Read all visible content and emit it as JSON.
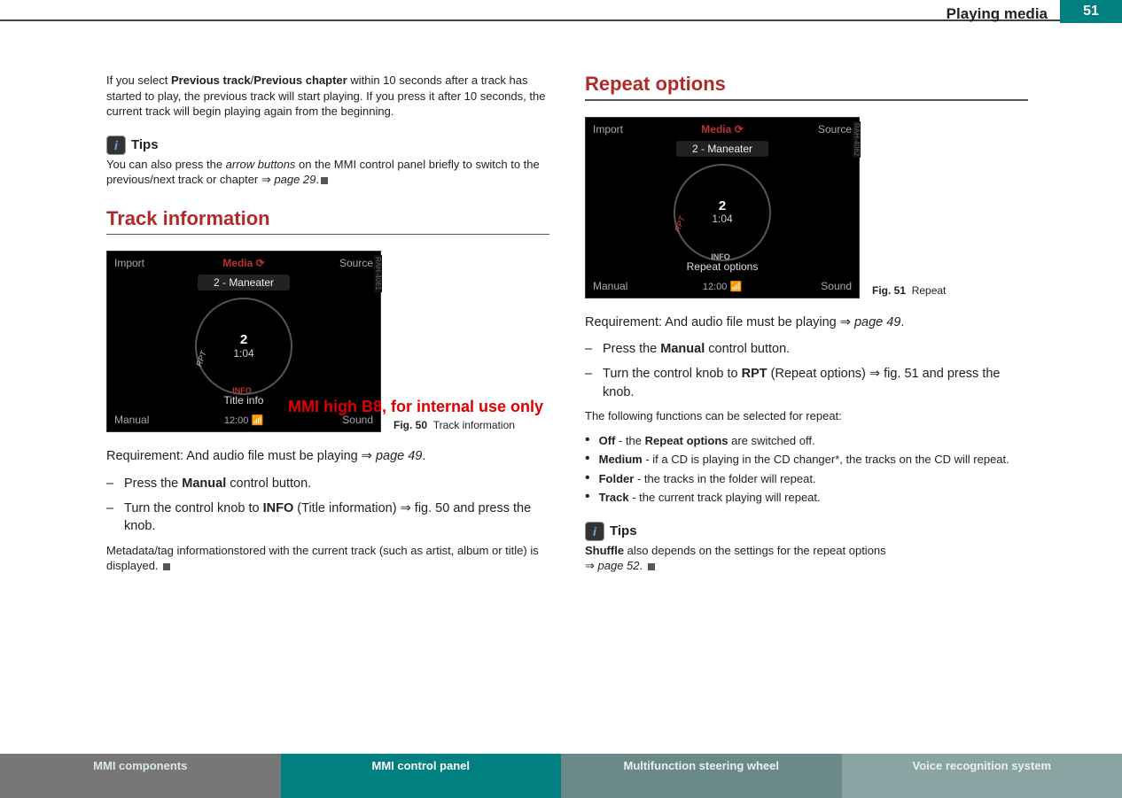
{
  "header": {
    "title": "Playing media",
    "page_number": "51"
  },
  "watermark": "MMI high B8, for internal use only",
  "col_left": {
    "intro": {
      "pre": "If you select ",
      "bold1": "Previous track",
      "slash": "/",
      "bold2": "Previous chapter",
      "post": " within 10 seconds after a track has started to play, the previous track will start playing. If you press it after 10 seconds, the current track will begin playing again from the beginning."
    },
    "tips_label": "Tips",
    "tips_body": {
      "pre": "You can also press the ",
      "ital": "arrow buttons",
      "mid": " on the MMI control panel briefly to switch to the previous/next track or chapter ",
      "arrow": "⇒",
      "ref": " page 29",
      "dot": "."
    },
    "section_title": "Track information",
    "fig": {
      "tl": "Import",
      "tr": "Source",
      "bl": "Manual",
      "br": "Sound",
      "media": "Media ⟳",
      "track": "2 - Maneater",
      "dial_num": "2",
      "dial_time": "1:04",
      "subtitle": "Title info",
      "clock": "12:00 📶",
      "side": "RAH-4061",
      "caption_no": "Fig. 50",
      "caption_txt": "Track information"
    },
    "requirement": {
      "pre": "Requirement: And audio file must be playing ",
      "arrow": "⇒",
      "ref": " page 49",
      "dot": "."
    },
    "step1": {
      "pre": "Press the ",
      "bold": "Manual",
      "post": " control button."
    },
    "step2": {
      "pre": "Turn the control knob to ",
      "bold": "INFO",
      "mid": " (Title information) ",
      "arrow": "⇒",
      "post": " fig. 50 and press the knob."
    },
    "meta_text": "Metadata/tag informationstored with the current track (such as artist, album or title) is displayed."
  },
  "col_right": {
    "section_title": "Repeat options",
    "fig": {
      "tl": "Import",
      "tr": "Source",
      "bl": "Manual",
      "br": "Sound",
      "media": "Media ⟳",
      "track": "2 - Maneater",
      "dial_num": "2",
      "dial_time": "1:04",
      "subtitle": "Repeat options",
      "clock": "12:00 📶",
      "side": "RAH-4062",
      "caption_no": "Fig. 51",
      "caption_txt": "Repeat"
    },
    "requirement": {
      "pre": "Requirement: And audio file must be playing ",
      "arrow": "⇒",
      "ref": " page 49",
      "dot": "."
    },
    "step1": {
      "pre": "Press the ",
      "bold": "Manual",
      "post": " control button."
    },
    "step2": {
      "pre": "Turn the control knob to ",
      "bold": "RPT",
      "mid": " (Repeat options) ",
      "arrow": "⇒",
      "post": " fig. 51 and press the knob."
    },
    "bullets_intro": "The following functions can be selected for repeat:",
    "bullets": {
      "b1": {
        "label": "Off",
        "text": " - the ",
        "bold2": "Repeat options",
        "post": " are switched off."
      },
      "b2": {
        "label": "Medium",
        "text": " - if a CD is playing in the CD changer*, the tracks on the CD will repeat."
      },
      "b3": {
        "label": "Folder",
        "text": " - the tracks in the folder will repeat."
      },
      "b4": {
        "label": "Track",
        "text": " - the current track playing will repeat."
      }
    },
    "tips_label": "Tips",
    "tips_body": {
      "bold": "Shuffle",
      "mid": " also depends on the settings for the repeat options ",
      "arrow": "⇒",
      "ref": " page 52",
      "dot": "."
    }
  },
  "footer": {
    "t1": "MMI components",
    "t2": "MMI control panel",
    "t3": "Multifunction steering wheel",
    "t4": "Voice recognition system"
  }
}
